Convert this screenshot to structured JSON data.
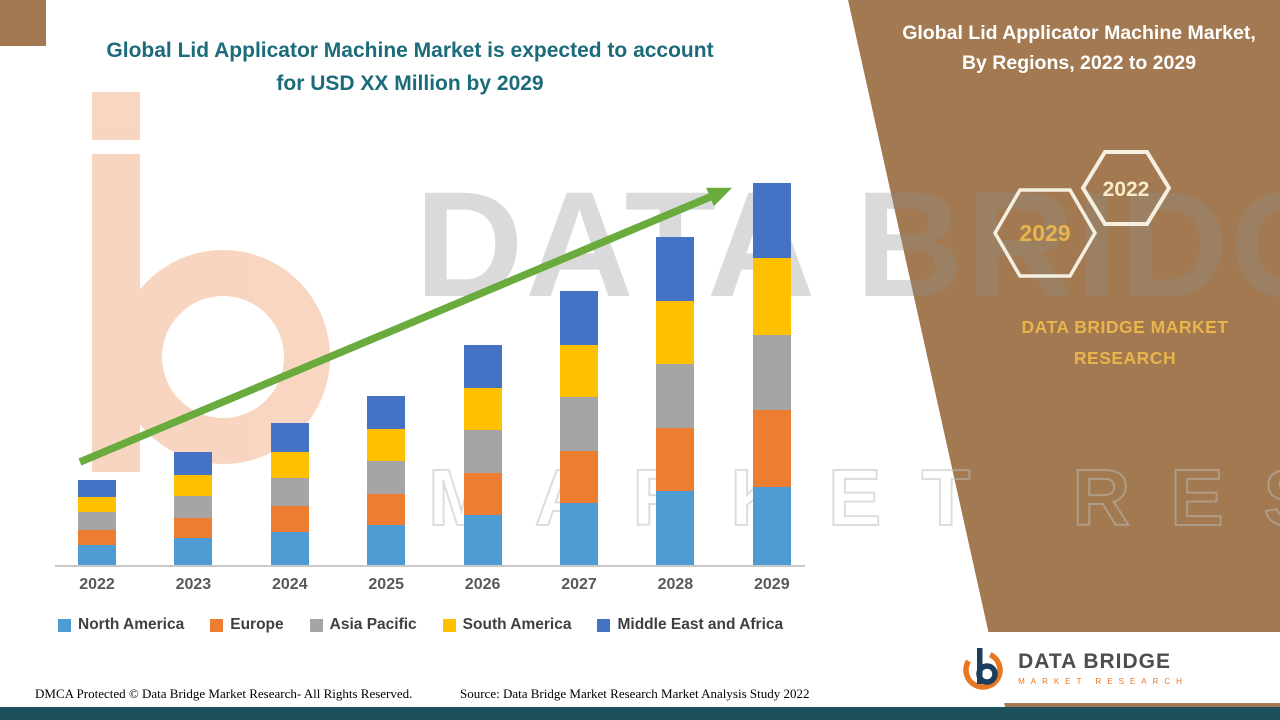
{
  "main_title": {
    "line1": "Global Lid Applicator Machine Market is expected to account",
    "line2": "for USD XX Million by 2029"
  },
  "right_panel": {
    "title": "Global Lid Applicator Machine Market, By Regions, 2022 to 2029",
    "badge_2029": "2029",
    "badge_2022": "2022",
    "brand": "DATA BRIDGE MARKET RESEARCH"
  },
  "watermark": {
    "text1": "DATA BRIDGE",
    "text2": "MARKET RESEARCH"
  },
  "logo": {
    "name": "DATA BRIDGE",
    "subtitle": "MARKET RESEARCH"
  },
  "footer": {
    "dmca": "DMCA Protected © Data Bridge Market Research- All Rights Reserved.",
    "source": "Source: Data Bridge Market Research Market Analysis Study 2022"
  },
  "colors": {
    "brown_panel": "#A27950",
    "title_teal": "#1C6B7A",
    "arrow_green": "#6AAB3E",
    "gold_text": "#E9B44C",
    "bottom_bar": "#1C505C"
  },
  "chart_data": {
    "type": "bar",
    "stacked": true,
    "title": "Global Lid Applicator Machine Market is expected to account for USD XX Million by 2029",
    "xlabel": "",
    "ylabel": "",
    "y_axis_visible": false,
    "legend_position": "bottom",
    "trend_arrow": true,
    "categories": [
      "2022",
      "2023",
      "2024",
      "2025",
      "2026",
      "2027",
      "2028",
      "2029"
    ],
    "series": [
      {
        "name": "North America",
        "color": "#4E9CD3",
        "values": [
          20,
          27,
          33,
          40,
          50,
          62,
          74,
          78
        ]
      },
      {
        "name": "Europe",
        "color": "#ED7D31",
        "values": [
          15,
          20,
          26,
          31,
          42,
          52,
          63,
          77
        ]
      },
      {
        "name": "Asia Pacific",
        "color": "#A5A5A5",
        "values": [
          18,
          22,
          28,
          33,
          43,
          54,
          64,
          75
        ]
      },
      {
        "name": "South America",
        "color": "#FFC000",
        "values": [
          15,
          21,
          26,
          32,
          42,
          52,
          63,
          77
        ]
      },
      {
        "name": "Middle East and Africa",
        "color": "#4472C4",
        "values": [
          17,
          23,
          29,
          33,
          43,
          54,
          64,
          75
        ]
      }
    ],
    "totals_note": "values are relative heights; no numeric y-axis is shown in the figure"
  }
}
